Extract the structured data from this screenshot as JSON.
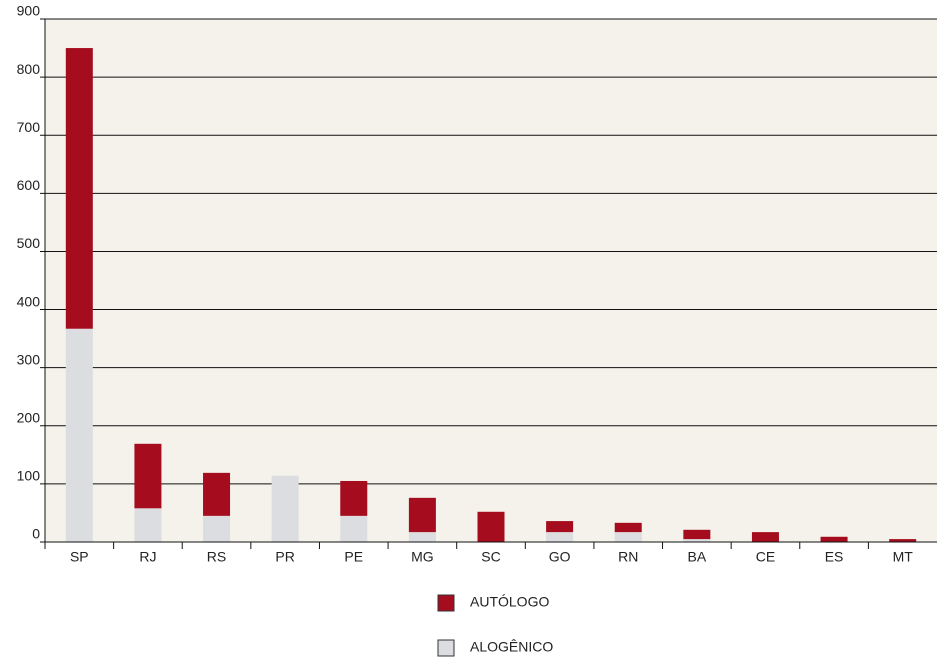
{
  "chart_data": {
    "type": "stacked_bar",
    "categories": [
      "SP",
      "RJ",
      "RS",
      "PR",
      "PE",
      "MG",
      "SC",
      "GO",
      "RN",
      "BA",
      "CE",
      "ES",
      "MT"
    ],
    "series": [
      {
        "name": "AUTÓLOGO",
        "color": "#a50d1e",
        "values": [
          483,
          111,
          74,
          0,
          60,
          59,
          52,
          19,
          16,
          16,
          17,
          9,
          5
        ]
      },
      {
        "name": "ALOGÊNICO",
        "color": "#dcdde0",
        "values": [
          367,
          58,
          45,
          114,
          45,
          17,
          0,
          17,
          17,
          5,
          0,
          0,
          0
        ]
      }
    ],
    "ylim": [
      0,
      900
    ],
    "yticks": [
      0,
      100,
      200,
      300,
      400,
      500,
      600,
      700,
      800,
      900
    ],
    "grid": true
  }
}
